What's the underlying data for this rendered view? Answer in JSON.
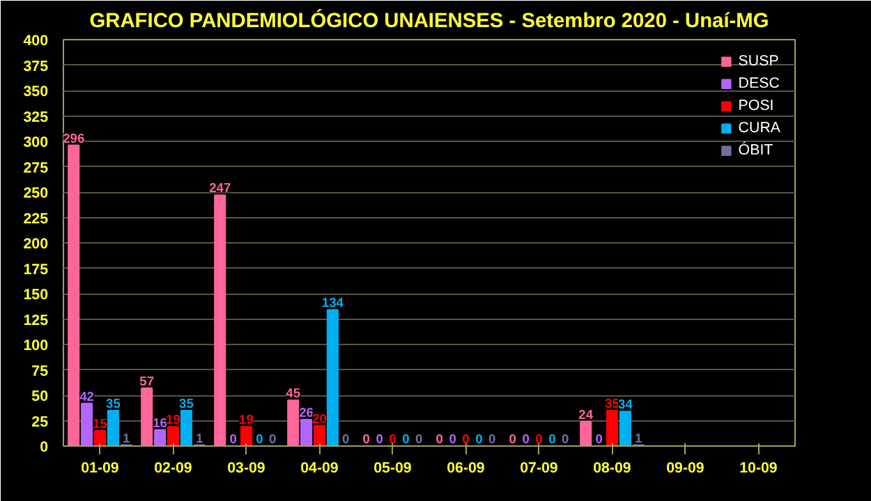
{
  "chart_data": {
    "type": "bar",
    "title": "GRAFICO PANDEMIOLÓGICO UNAIENSES - Setembro 2020 - Unaí-MG",
    "categories": [
      "01-09",
      "02-09",
      "03-09",
      "04-09",
      "05-09",
      "06-09",
      "07-09",
      "08-09",
      "09-09",
      "10-09"
    ],
    "series": [
      {
        "name": "SUSP",
        "color": "#ff6699",
        "values": [
          296,
          57,
          247,
          45,
          0,
          0,
          0,
          24,
          null,
          null
        ]
      },
      {
        "name": "DESC",
        "color": "#b266ff",
        "values": [
          42,
          16,
          0,
          26,
          0,
          0,
          0,
          0,
          null,
          null
        ]
      },
      {
        "name": "POSI",
        "color": "#ff0000",
        "values": [
          15,
          19,
          19,
          20,
          0,
          0,
          0,
          35,
          null,
          null
        ]
      },
      {
        "name": "CURA",
        "color": "#00b0f0",
        "values": [
          35,
          35,
          0,
          134,
          0,
          0,
          0,
          34,
          null,
          null
        ]
      },
      {
        "name": "ÓBIT",
        "color": "#7070a0",
        "values": [
          1,
          1,
          0,
          0,
          0,
          0,
          0,
          1,
          null,
          null
        ]
      }
    ],
    "ylim": [
      0,
      400
    ],
    "yticks": [
      0,
      25,
      50,
      75,
      100,
      125,
      150,
      175,
      200,
      225,
      250,
      275,
      300,
      325,
      350,
      375,
      400
    ],
    "grid": "y",
    "legend": "top right",
    "data_labels": true
  }
}
